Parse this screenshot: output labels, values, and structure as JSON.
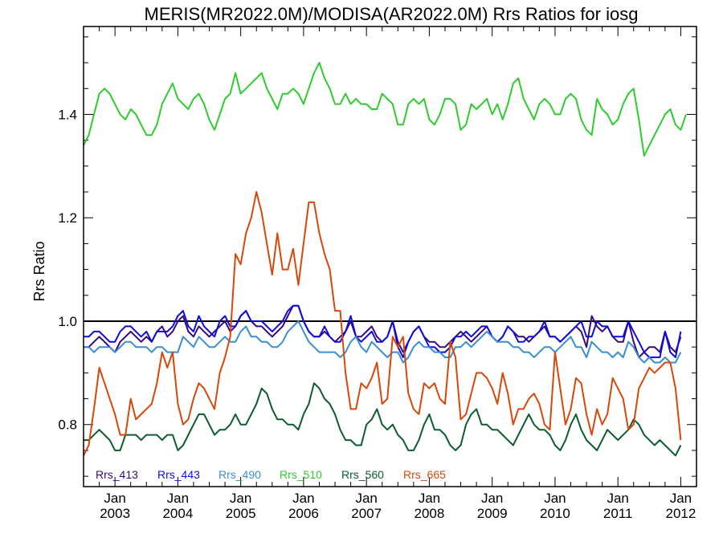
{
  "chart_data": {
    "type": "line",
    "title": "MERIS(MR2022.0M)/MODISA(AR2022.0M)  Rrs Ratios for iosg",
    "xlabel": "",
    "ylabel": "Rrs Ratio",
    "xlim": [
      "2002-07",
      "2012-04"
    ],
    "ylim": [
      0.68,
      1.57
    ],
    "x_major_ticks": [
      "2003-01",
      "2004-01",
      "2005-01",
      "2006-01",
      "2007-01",
      "2008-01",
      "2009-01",
      "2010-01",
      "2011-01",
      "2012-01"
    ],
    "x_tick_labels": [
      {
        "month": "Jan",
        "year": "2003"
      },
      {
        "month": "Jan",
        "year": "2004"
      },
      {
        "month": "Jan",
        "year": "2005"
      },
      {
        "month": "Jan",
        "year": "2006"
      },
      {
        "month": "Jan",
        "year": "2007"
      },
      {
        "month": "Jan",
        "year": "2008"
      },
      {
        "month": "Jan",
        "year": "2009"
      },
      {
        "month": "Jan",
        "year": "2010"
      },
      {
        "month": "Jan",
        "year": "2011"
      },
      {
        "month": "Jan",
        "year": "2012"
      }
    ],
    "y_major_ticks": [
      0.8,
      1.0,
      1.2,
      1.4
    ],
    "y_tick_labels": [
      "0.8",
      "1.0",
      "1.2",
      "1.4"
    ],
    "y_minor_step": 0.05,
    "reference_line": 1.0,
    "grid": false,
    "legend_position": "bottom-left, inside plot",
    "x_start": "2002-07",
    "series": [
      {
        "name": "Rrs_413",
        "color": "#3a0a7a",
        "values": [
          0.95,
          0.95,
          0.96,
          0.97,
          0.96,
          0.95,
          0.94,
          0.96,
          0.97,
          0.98,
          0.97,
          0.96,
          0.97,
          0.96,
          0.98,
          0.99,
          0.97,
          0.98,
          1.0,
          1.01,
          0.98,
          0.97,
          0.99,
          0.98,
          0.97,
          0.98,
          0.99,
          1.0,
          0.98,
          0.99,
          1.01,
          1.02,
          1.0,
          0.99,
          0.99,
          0.98,
          0.97,
          0.98,
          0.99,
          1.01,
          1.03,
          1.03,
          1.0,
          0.98,
          0.97,
          0.97,
          0.98,
          0.97,
          0.96,
          0.97,
          0.98,
          1.0,
          0.97,
          0.97,
          0.98,
          0.99,
          0.97,
          0.96,
          0.97,
          1.0,
          0.96,
          0.94,
          0.96,
          0.98,
          0.99,
          0.97,
          0.96,
          0.96,
          0.95,
          0.95,
          0.96,
          0.97,
          0.98,
          0.97,
          0.96,
          0.97,
          0.98,
          0.99,
          0.97,
          0.96,
          0.97,
          0.99,
          0.98,
          0.97,
          0.97,
          0.96,
          0.97,
          0.98,
          0.99,
          0.97,
          0.97,
          0.96,
          0.97,
          0.98,
          0.99,
          0.98,
          0.95,
          1.01,
          0.99,
          0.98,
          0.99,
          0.97,
          0.96,
          0.96,
          1.0,
          0.96,
          0.93,
          0.94,
          0.95,
          0.95,
          0.94,
          0.98,
          0.95,
          0.94,
          0.97
        ]
      },
      {
        "name": "Rrs_443",
        "color": "#0d0de0",
        "values": [
          0.97,
          0.97,
          0.98,
          0.98,
          0.97,
          0.96,
          0.96,
          0.98,
          0.99,
          0.99,
          0.98,
          0.97,
          0.98,
          0.96,
          0.98,
          0.98,
          0.98,
          0.99,
          1.01,
          1.02,
          0.99,
          0.98,
          1.01,
          0.99,
          0.98,
          0.97,
          1.0,
          1.01,
          0.99,
          0.99,
          1.01,
          1.02,
          1.0,
          1.0,
          1.0,
          0.99,
          0.98,
          0.99,
          1.0,
          1.02,
          1.03,
          1.03,
          1.0,
          0.98,
          0.97,
          0.97,
          0.99,
          0.97,
          0.96,
          0.96,
          0.98,
          1.01,
          0.97,
          0.96,
          0.97,
          0.98,
          0.96,
          0.96,
          0.97,
          1.0,
          0.95,
          0.93,
          0.96,
          0.98,
          0.99,
          0.97,
          0.95,
          0.95,
          0.94,
          0.94,
          0.95,
          0.97,
          0.97,
          0.98,
          0.97,
          0.98,
          0.99,
          0.99,
          0.97,
          0.96,
          0.97,
          0.99,
          0.98,
          0.96,
          0.96,
          0.97,
          0.97,
          0.98,
          1.0,
          0.97,
          0.97,
          0.96,
          0.97,
          0.98,
          0.99,
          1.0,
          0.97,
          0.97,
          1.0,
          0.99,
          0.99,
          0.97,
          0.97,
          0.97,
          1.0,
          0.98,
          0.96,
          0.94,
          0.93,
          0.93,
          0.93,
          0.98,
          0.94,
          0.93,
          0.98
        ]
      },
      {
        "name": "Rrs_490",
        "color": "#3a8fd0",
        "values": [
          0.95,
          0.95,
          0.94,
          0.95,
          0.95,
          0.95,
          0.94,
          0.95,
          0.96,
          0.96,
          0.95,
          0.95,
          0.95,
          0.94,
          0.95,
          0.95,
          0.94,
          0.94,
          0.94,
          0.97,
          0.96,
          0.95,
          0.97,
          0.96,
          0.95,
          0.95,
          0.96,
          0.97,
          0.96,
          0.96,
          0.98,
          0.99,
          0.97,
          0.97,
          0.96,
          0.96,
          0.95,
          0.95,
          0.96,
          0.98,
          0.99,
          1.0,
          0.98,
          0.96,
          0.95,
          0.94,
          0.94,
          0.94,
          0.94,
          0.93,
          0.94,
          0.96,
          0.97,
          0.95,
          0.94,
          0.96,
          0.95,
          0.94,
          0.93,
          0.94,
          0.94,
          0.92,
          0.93,
          0.95,
          0.96,
          0.95,
          0.95,
          0.94,
          0.94,
          0.93,
          0.93,
          0.95,
          0.95,
          0.96,
          0.95,
          0.96,
          0.97,
          0.98,
          0.97,
          0.96,
          0.96,
          0.96,
          0.95,
          0.95,
          0.94,
          0.94,
          0.93,
          0.94,
          0.95,
          0.95,
          0.94,
          0.95,
          0.96,
          0.97,
          0.95,
          0.95,
          0.93,
          0.96,
          0.95,
          0.94,
          0.94,
          0.93,
          0.94,
          0.93,
          0.96,
          0.95,
          0.93,
          0.92,
          0.93,
          0.92,
          0.92,
          0.93,
          0.92,
          0.92,
          0.94
        ]
      },
      {
        "name": "Rrs_510",
        "color": "#2ecc2e",
        "values": [
          1.34,
          1.36,
          1.4,
          1.44,
          1.45,
          1.44,
          1.42,
          1.4,
          1.39,
          1.41,
          1.4,
          1.38,
          1.36,
          1.36,
          1.38,
          1.42,
          1.44,
          1.46,
          1.43,
          1.42,
          1.41,
          1.43,
          1.44,
          1.42,
          1.39,
          1.37,
          1.4,
          1.43,
          1.44,
          1.48,
          1.44,
          1.45,
          1.46,
          1.47,
          1.48,
          1.45,
          1.43,
          1.41,
          1.44,
          1.44,
          1.45,
          1.44,
          1.42,
          1.45,
          1.48,
          1.5,
          1.47,
          1.45,
          1.42,
          1.42,
          1.44,
          1.42,
          1.43,
          1.42,
          1.42,
          1.41,
          1.41,
          1.44,
          1.43,
          1.42,
          1.38,
          1.38,
          1.42,
          1.43,
          1.42,
          1.43,
          1.39,
          1.38,
          1.4,
          1.43,
          1.43,
          1.42,
          1.37,
          1.38,
          1.42,
          1.41,
          1.42,
          1.43,
          1.4,
          1.42,
          1.39,
          1.42,
          1.46,
          1.47,
          1.43,
          1.41,
          1.39,
          1.42,
          1.43,
          1.42,
          1.4,
          1.4,
          1.43,
          1.44,
          1.43,
          1.39,
          1.37,
          1.36,
          1.43,
          1.41,
          1.4,
          1.38,
          1.39,
          1.42,
          1.44,
          1.45,
          1.39,
          1.32,
          1.34,
          1.36,
          1.38,
          1.4,
          1.41,
          1.38,
          1.37,
          1.4
        ]
      },
      {
        "name": "Rrs_560",
        "color": "#0b5c2e",
        "values": [
          0.77,
          0.77,
          0.78,
          0.79,
          0.78,
          0.77,
          0.75,
          0.75,
          0.78,
          0.78,
          0.78,
          0.77,
          0.78,
          0.78,
          0.78,
          0.77,
          0.78,
          0.78,
          0.75,
          0.76,
          0.78,
          0.8,
          0.82,
          0.82,
          0.8,
          0.78,
          0.79,
          0.79,
          0.8,
          0.82,
          0.8,
          0.8,
          0.82,
          0.84,
          0.87,
          0.86,
          0.83,
          0.81,
          0.81,
          0.8,
          0.8,
          0.79,
          0.82,
          0.84,
          0.88,
          0.87,
          0.85,
          0.84,
          0.82,
          0.79,
          0.77,
          0.77,
          0.76,
          0.76,
          0.8,
          0.81,
          0.83,
          0.8,
          0.79,
          0.8,
          0.78,
          0.77,
          0.75,
          0.75,
          0.77,
          0.8,
          0.82,
          0.79,
          0.79,
          0.78,
          0.76,
          0.75,
          0.76,
          0.8,
          0.82,
          0.83,
          0.8,
          0.8,
          0.79,
          0.79,
          0.78,
          0.77,
          0.76,
          0.78,
          0.8,
          0.82,
          0.8,
          0.79,
          0.79,
          0.78,
          0.76,
          0.75,
          0.77,
          0.8,
          0.82,
          0.79,
          0.77,
          0.76,
          0.75,
          0.77,
          0.79,
          0.78,
          0.77,
          0.78,
          0.79,
          0.81,
          0.8,
          0.78,
          0.77,
          0.76,
          0.77,
          0.76,
          0.75,
          0.74,
          0.76
        ]
      },
      {
        "name": "Rrs_665",
        "color": "#d9470a",
        "values": [
          0.74,
          0.76,
          0.83,
          0.91,
          0.88,
          0.85,
          0.82,
          0.78,
          0.78,
          0.85,
          0.81,
          0.82,
          0.83,
          0.84,
          0.88,
          0.94,
          0.91,
          0.94,
          0.84,
          0.8,
          0.81,
          0.85,
          0.88,
          0.87,
          0.85,
          0.83,
          0.9,
          0.93,
          0.97,
          1.13,
          1.11,
          1.17,
          1.2,
          1.25,
          1.21,
          1.15,
          1.09,
          1.17,
          1.1,
          1.1,
          1.14,
          1.07,
          1.15,
          1.23,
          1.23,
          1.17,
          1.13,
          1.1,
          1.02,
          1.02,
          0.9,
          0.83,
          0.83,
          0.88,
          0.87,
          0.89,
          0.92,
          0.84,
          0.85,
          0.97,
          0.95,
          0.97,
          0.86,
          0.83,
          0.82,
          0.88,
          0.87,
          0.88,
          0.85,
          0.84,
          0.96,
          0.93,
          0.81,
          0.82,
          0.86,
          0.9,
          0.9,
          0.89,
          0.87,
          0.84,
          0.9,
          0.86,
          0.8,
          0.83,
          0.83,
          0.85,
          0.86,
          0.84,
          0.8,
          0.79,
          0.94,
          0.87,
          0.8,
          0.83,
          0.89,
          0.88,
          0.82,
          0.78,
          0.83,
          0.8,
          0.82,
          0.89,
          0.87,
          0.85,
          0.79,
          0.8,
          0.87,
          0.89,
          0.91,
          0.9,
          0.91,
          0.92,
          0.92,
          0.87,
          0.77
        ]
      }
    ]
  }
}
